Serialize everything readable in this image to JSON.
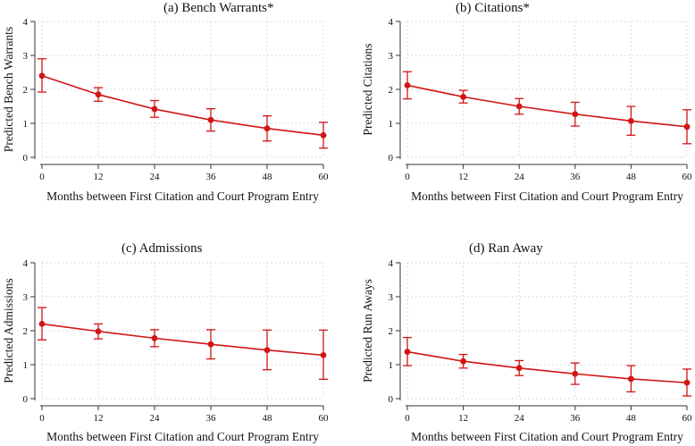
{
  "chart_data": [
    {
      "type": "line",
      "title": "(a) Bench Warrants*",
      "xlabel": "Months between First Citation and Court Program Entry",
      "ylabel": "Predicted Bench Warrants",
      "x": [
        0,
        12,
        24,
        36,
        48,
        60
      ],
      "x_tick_labels": [
        "0",
        "12",
        "24",
        "36",
        "48",
        "60"
      ],
      "y_tick_labels": [
        "0",
        "1",
        "2",
        "3",
        "4"
      ],
      "xlim": [
        0,
        60
      ],
      "ylim": [
        0,
        4
      ],
      "series": [
        {
          "name": "Predicted Bench Warrants",
          "values": [
            2.4,
            1.85,
            1.42,
            1.1,
            0.85,
            0.65
          ],
          "ci_low": [
            1.92,
            1.65,
            1.18,
            0.77,
            0.48,
            0.27
          ],
          "ci_high": [
            2.9,
            2.05,
            1.67,
            1.43,
            1.22,
            1.03
          ]
        }
      ],
      "grid": true,
      "color": "#d11515"
    },
    {
      "type": "line",
      "title": "(b) Citations*",
      "xlabel": "Months between First Citation and Court Program Entry",
      "ylabel": "Predicted Citations",
      "x": [
        0,
        12,
        24,
        36,
        48,
        60
      ],
      "x_tick_labels": [
        "0",
        "12",
        "24",
        "36",
        "48",
        "60"
      ],
      "y_tick_labels": [
        "0",
        "1",
        "2",
        "3",
        "4"
      ],
      "xlim": [
        0,
        60
      ],
      "ylim": [
        0,
        4
      ],
      "series": [
        {
          "name": "Predicted Citations",
          "values": [
            2.12,
            1.78,
            1.5,
            1.27,
            1.07,
            0.9
          ],
          "ci_low": [
            1.72,
            1.6,
            1.27,
            0.92,
            0.65,
            0.4
          ],
          "ci_high": [
            2.52,
            1.97,
            1.73,
            1.62,
            1.5,
            1.4
          ]
        }
      ],
      "grid": true,
      "color": "#d11515"
    },
    {
      "type": "line",
      "title": "(c) Admissions",
      "xlabel": "Months between First Citation and Court Program Entry",
      "ylabel": "Predicted Admissions",
      "x": [
        0,
        12,
        24,
        36,
        48,
        60
      ],
      "x_tick_labels": [
        "0",
        "12",
        "24",
        "36",
        "48",
        "60"
      ],
      "y_tick_labels": [
        "0",
        "1",
        "2",
        "3",
        "4"
      ],
      "xlim": [
        0,
        60
      ],
      "ylim": [
        0,
        4
      ],
      "series": [
        {
          "name": "Predicted Admissions",
          "values": [
            2.2,
            1.98,
            1.78,
            1.6,
            1.43,
            1.28
          ],
          "ci_low": [
            1.73,
            1.76,
            1.53,
            1.17,
            0.85,
            0.57
          ],
          "ci_high": [
            2.68,
            2.2,
            2.03,
            2.03,
            2.02,
            2.02
          ]
        }
      ],
      "grid": true,
      "color": "#d11515"
    },
    {
      "type": "line",
      "title": "(d) Ran Away",
      "xlabel": "Months between First Citation and Court Program Entry",
      "ylabel": "Predicted Run Aways",
      "x": [
        0,
        12,
        24,
        36,
        48,
        60
      ],
      "x_tick_labels": [
        "0",
        "12",
        "24",
        "36",
        "48",
        "60"
      ],
      "y_tick_labels": [
        "0",
        "1",
        "2",
        "3",
        "4"
      ],
      "xlim": [
        0,
        60
      ],
      "ylim": [
        0,
        4
      ],
      "series": [
        {
          "name": "Predicted Run Aways",
          "values": [
            1.38,
            1.1,
            0.9,
            0.73,
            0.58,
            0.47
          ],
          "ci_low": [
            0.97,
            0.9,
            0.68,
            0.42,
            0.2,
            0.08
          ],
          "ci_high": [
            1.8,
            1.3,
            1.12,
            1.05,
            0.97,
            0.87
          ]
        }
      ],
      "grid": true,
      "color": "#d11515"
    }
  ]
}
